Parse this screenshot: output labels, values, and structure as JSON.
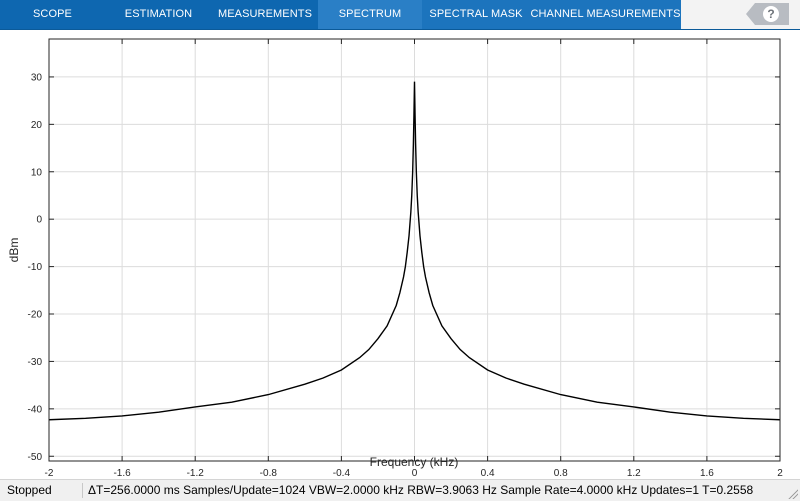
{
  "toolstrip": {
    "tabs": [
      {
        "label": "SCOPE",
        "name": "tab-scope"
      },
      {
        "label": "ESTIMATION",
        "name": "tab-estimation"
      },
      {
        "label": "MEASUREMENTS",
        "name": "tab-measurements"
      },
      {
        "label": "SPECTRUM",
        "name": "tab-spectrum"
      },
      {
        "label": "SPECTRAL MASK",
        "name": "tab-spectral-mask"
      },
      {
        "label": "CHANNEL MEASUREMENTS",
        "name": "tab-channel-measurements"
      }
    ],
    "active_tab": "SPECTRUM",
    "help_glyph": "?",
    "colors": {
      "bar": "#0e67b0",
      "active": "#2a7fc6"
    }
  },
  "status": {
    "state": "Stopped",
    "details": "ΔT=256.0000 ms  Samples/Update=1024  VBW=2.0000 kHz  RBW=3.9063 Hz  Sample Rate=4.0000 kHz  Updates=1  T=0.2558"
  },
  "chart_data": {
    "type": "line",
    "xlabel": "Frequency (kHz)",
    "ylabel": "dBm",
    "xlim": [
      -2,
      2
    ],
    "ylim": [
      -51,
      38
    ],
    "xticks": [
      -2,
      -1.6,
      -1.2,
      -0.8,
      -0.4,
      0,
      0.4,
      0.8,
      1.2,
      1.6,
      2
    ],
    "xtick_labels": [
      "-2",
      "-1.6",
      "-1.2",
      "-0.8",
      "-0.4",
      "0",
      "0.4",
      "0.8",
      "1.2",
      "1.6",
      "2"
    ],
    "yticks": [
      -50,
      -40,
      -30,
      -20,
      -10,
      0,
      10,
      20,
      30
    ],
    "ytick_labels": [
      "-50",
      "-40",
      "-30",
      "-20",
      "-10",
      "0",
      "10",
      "20",
      "30"
    ],
    "grid": true,
    "line_color": "#000000",
    "series": [
      {
        "x": [
          -2,
          -1.8,
          -1.6,
          -1.4,
          -1.2,
          -1.0,
          -0.8,
          -0.6,
          -0.5,
          -0.4,
          -0.3,
          -0.25,
          -0.2,
          -0.15,
          -0.1,
          -0.08,
          -0.06,
          -0.05,
          -0.04,
          -0.03,
          -0.02,
          -0.015,
          -0.01,
          -0.006,
          -0.003,
          0,
          0.003,
          0.006,
          0.01,
          0.015,
          0.02,
          0.03,
          0.04,
          0.05,
          0.06,
          0.08,
          0.1,
          0.15,
          0.2,
          0.25,
          0.3,
          0.4,
          0.5,
          0.6,
          0.8,
          1.0,
          1.2,
          1.4,
          1.6,
          1.8,
          2
        ],
        "y": [
          -42.3,
          -42.0,
          -41.5,
          -40.7,
          -39.6,
          -38.6,
          -37.0,
          -34.8,
          -33.5,
          -31.8,
          -29.2,
          -27.5,
          -25.2,
          -22.5,
          -18.2,
          -15.5,
          -12.2,
          -10.0,
          -7.0,
          -3.5,
          1.5,
          5.0,
          10.0,
          16.0,
          22.0,
          29.0,
          22.0,
          16.0,
          10.0,
          5.0,
          1.5,
          -3.5,
          -7.0,
          -10.0,
          -12.2,
          -15.5,
          -18.2,
          -22.5,
          -25.2,
          -27.5,
          -29.2,
          -31.8,
          -33.5,
          -34.8,
          -37.0,
          -38.6,
          -39.6,
          -40.7,
          -41.5,
          -42.0,
          -42.3
        ]
      }
    ]
  }
}
